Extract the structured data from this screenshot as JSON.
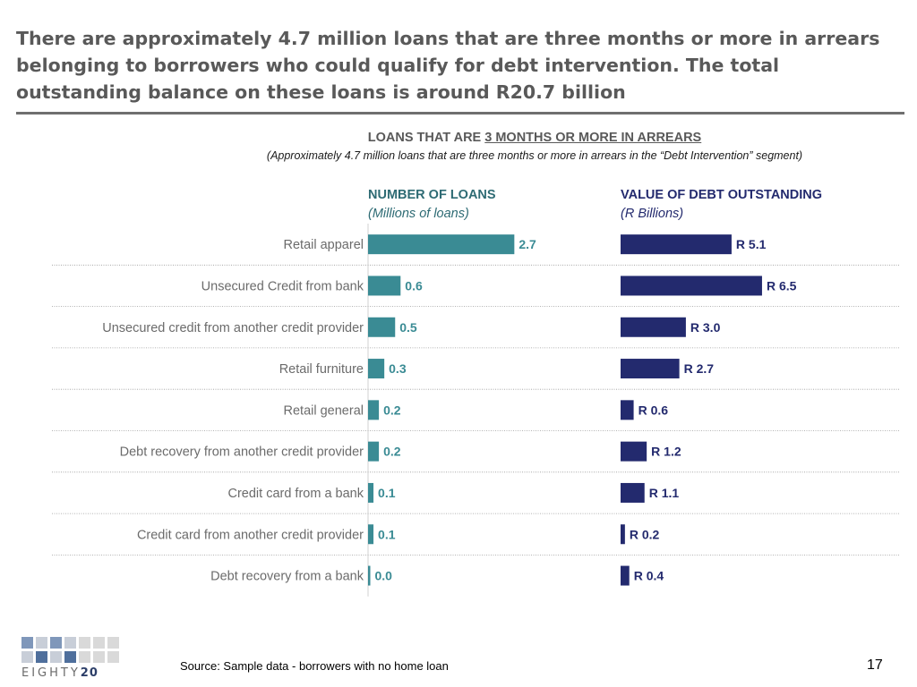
{
  "page": {
    "headline": "There are approximately 4.7 million loans that are three months or more in arrears belonging to borrowers who could qualify for debt intervention. The total outstanding balance on these loans is around R20.7 billion",
    "source": "Source: Sample data - borrowers with no home loan",
    "page_number": "17",
    "logo": {
      "text_main": "EIGHTY",
      "text_num": "20"
    }
  },
  "chart_data": {
    "type": "bar",
    "orientation": "horizontal",
    "title_prefix": "LOANS THAT ARE ",
    "title_underlined": "3 MONTHS OR MORE IN ARREARS",
    "subtitle": "(Approximately 4.7 million loans that are three months or more in arrears in the “Debt Intervention” segment)",
    "categories": [
      "Retail apparel",
      "Unsecured Credit from bank",
      "Unsecured credit from another credit provider",
      "Retail furniture",
      "Retail general",
      "Debt recovery from another credit provider",
      "Credit card from a bank",
      "Credit card from another credit provider",
      "Debt recovery from a bank"
    ],
    "series": [
      {
        "name": "NUMBER OF LOANS",
        "unit": "(Millions of loans)",
        "color": "#3a8b94",
        "values": [
          2.7,
          0.6,
          0.5,
          0.3,
          0.2,
          0.2,
          0.1,
          0.1,
          0.0
        ],
        "labels": [
          "2.7",
          "0.6",
          "0.5",
          "0.3",
          "0.2",
          "0.2",
          "0.1",
          "0.1",
          "0.0"
        ]
      },
      {
        "name": "VALUE OF DEBT OUTSTANDING",
        "unit": "(R Billions)",
        "color": "#232a6e",
        "values": [
          5.1,
          6.5,
          3.0,
          2.7,
          0.6,
          1.2,
          1.1,
          0.2,
          0.4
        ],
        "labels": [
          "R 5.1",
          "R 6.5",
          "R 3.0",
          "R 2.7",
          "R 0.6",
          "R 1.2",
          "R 1.1",
          "R 0.2",
          "R 0.4"
        ]
      }
    ],
    "grid": "dotted row separators",
    "legend": "none"
  }
}
